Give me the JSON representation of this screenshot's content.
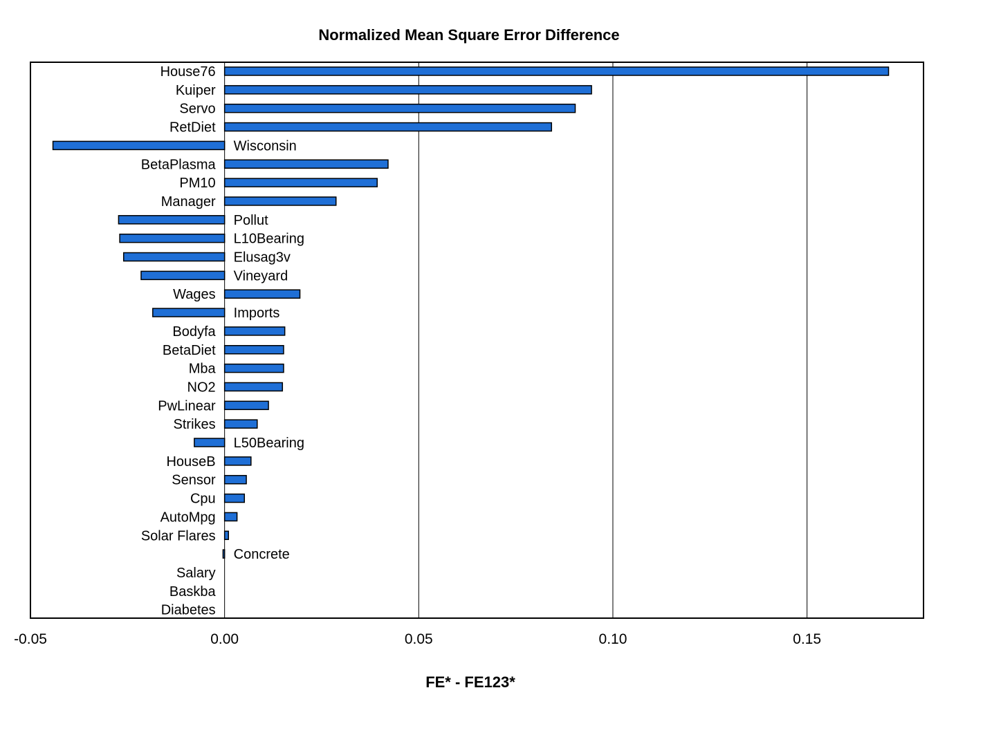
{
  "chart_data": {
    "type": "bar",
    "orientation": "horizontal",
    "title": "Normalized Mean Square Error Difference",
    "xlabel": "FE* - FE123*",
    "ylabel": "",
    "xlim": [
      -0.05,
      0.18
    ],
    "xticks": [
      -0.05,
      0.0,
      0.05,
      0.1,
      0.15
    ],
    "xtick_labels": [
      "-0.05",
      "0.00",
      "0.05",
      "0.10",
      "0.15"
    ],
    "grid": true,
    "bar_color": "#1F6FD6",
    "categories": [
      "House76",
      "Kuiper",
      "Servo",
      "RetDiet",
      "Wisconsin",
      "BetaPlasma",
      "PM10",
      "Manager",
      "Pollut",
      "L10Bearing",
      "Elusag3v",
      "Vineyard",
      "Wages",
      "Imports",
      "Bodyfa",
      "BetaDiet",
      "Mba",
      "NO2",
      "PwLinear",
      "Strikes",
      "L50Bearing",
      "HouseB",
      "Sensor",
      "Cpu",
      "AutoMpg",
      "Solar Flares",
      "Concrete",
      "Salary",
      "Baskba",
      "Diabetes"
    ],
    "values": [
      0.171,
      0.0945,
      0.0903,
      0.0842,
      -0.0442,
      0.0421,
      0.0393,
      0.0287,
      -0.0273,
      -0.027,
      -0.026,
      -0.0215,
      0.0194,
      -0.0185,
      0.0155,
      0.0152,
      0.0152,
      0.0149,
      0.0113,
      0.0084,
      -0.0078,
      0.0068,
      0.0056,
      0.0051,
      0.0032,
      0.001,
      -0.0004,
      0.0,
      0.0,
      0.0
    ]
  }
}
